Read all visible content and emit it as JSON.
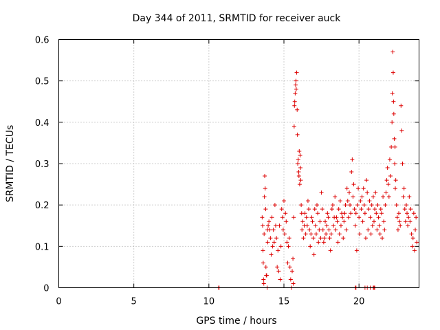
{
  "chart_data": {
    "type": "scatter",
    "title": "Day 344 of 2011, SRMTID for receiver auck",
    "xlabel": "GPS time / hours",
    "ylabel": "SRMTID / TECUs",
    "xlim": [
      0,
      24
    ],
    "ylim": [
      0,
      0.6
    ],
    "xticks": [
      0,
      5,
      10,
      15,
      20
    ],
    "yticks": [
      0,
      0.1,
      0.2,
      0.3,
      0.4,
      0.5,
      0.6
    ],
    "xtick_labels": [
      "0",
      "5",
      "10",
      "15",
      "20"
    ],
    "ytick_labels": [
      "0",
      "0.1",
      "0.2",
      "0.3",
      "0.4",
      "0.5",
      "0.6"
    ],
    "grid": true,
    "marker": "plus",
    "color": "#dd0000",
    "series": [
      {
        "name": "SRMTID",
        "x": [
          10.65,
          10.68,
          13.55,
          13.58,
          13.6,
          13.62,
          13.64,
          13.66,
          13.68,
          13.7,
          13.72,
          13.75,
          13.78,
          13.8,
          13.82,
          13.85,
          13.88,
          13.9,
          13.92,
          13.95,
          14.0,
          14.05,
          14.1,
          14.15,
          14.2,
          14.25,
          14.3,
          14.35,
          14.4,
          14.45,
          14.5,
          14.55,
          14.6,
          14.65,
          14.7,
          14.75,
          14.8,
          14.85,
          14.9,
          14.95,
          15.0,
          15.05,
          15.1,
          15.15,
          15.2,
          15.25,
          15.3,
          15.35,
          15.4,
          15.45,
          15.5,
          15.55,
          15.6,
          15.62,
          15.65,
          15.68,
          15.7,
          15.72,
          15.75,
          15.78,
          15.8,
          15.82,
          15.85,
          15.88,
          15.9,
          15.92,
          15.95,
          15.98,
          16.0,
          16.02,
          16.05,
          16.08,
          16.1,
          16.12,
          16.15,
          16.18,
          16.2,
          16.25,
          16.3,
          16.35,
          16.4,
          16.45,
          16.5,
          16.55,
          16.6,
          16.65,
          16.7,
          16.75,
          16.8,
          16.85,
          16.9,
          16.95,
          17.0,
          17.05,
          17.1,
          17.15,
          17.2,
          17.25,
          17.3,
          17.35,
          17.4,
          17.45,
          17.5,
          17.55,
          17.6,
          17.65,
          17.7,
          17.75,
          17.8,
          17.85,
          17.9,
          17.95,
          18.0,
          18.05,
          18.1,
          18.15,
          18.2,
          18.25,
          18.3,
          18.35,
          18.4,
          18.45,
          18.5,
          18.55,
          18.6,
          18.65,
          18.7,
          18.75,
          18.8,
          18.85,
          18.9,
          18.95,
          19.0,
          19.05,
          19.1,
          19.15,
          19.2,
          19.25,
          19.3,
          19.35,
          19.4,
          19.45,
          19.5,
          19.55,
          19.6,
          19.65,
          19.7,
          19.75,
          19.8,
          19.85,
          19.9,
          19.95,
          20.0,
          20.05,
          20.1,
          20.15,
          20.2,
          20.25,
          20.3,
          20.35,
          20.4,
          20.45,
          20.5,
          20.55,
          20.6,
          20.65,
          20.7,
          20.75,
          20.8,
          20.85,
          20.9,
          20.95,
          21.0,
          21.05,
          21.1,
          21.15,
          21.2,
          21.25,
          21.3,
          21.35,
          21.4,
          21.45,
          21.5,
          21.55,
          21.6,
          21.65,
          21.7,
          21.75,
          21.8,
          21.85,
          21.9,
          21.95,
          22.0,
          22.05,
          22.1,
          22.15,
          22.2,
          22.22,
          22.25,
          22.28,
          22.3,
          22.32,
          22.35,
          22.38,
          22.4,
          22.42,
          22.45,
          22.5,
          22.55,
          22.6,
          22.65,
          22.7,
          22.75,
          22.8,
          22.85,
          22.9,
          22.95,
          23.0,
          23.05,
          23.1,
          23.15,
          23.2,
          23.25,
          23.3,
          23.35,
          23.4,
          23.45,
          23.5,
          23.55,
          23.6,
          23.65,
          23.7,
          23.75,
          23.8,
          23.85,
          19.75,
          19.8,
          20.4,
          20.55,
          20.75,
          20.95,
          21.0,
          21.05
        ],
        "y": [
          0.0,
          0.0,
          0.17,
          0.15,
          0.09,
          0.06,
          0.02,
          0.01,
          0.13,
          0.22,
          0.27,
          0.24,
          0.19,
          0.05,
          0.03,
          0.03,
          0.0,
          0.14,
          0.11,
          0.15,
          0.16,
          0.14,
          0.12,
          0.08,
          0.17,
          0.1,
          0.14,
          0.11,
          0.2,
          0.15,
          0.12,
          0.05,
          0.09,
          0.04,
          0.15,
          0.02,
          0.1,
          0.19,
          0.17,
          0.14,
          0.21,
          0.13,
          0.18,
          0.16,
          0.11,
          0.06,
          0.1,
          0.12,
          0.05,
          0.02,
          0.0,
          0.04,
          0.07,
          0.01,
          0.17,
          0.39,
          0.44,
          0.45,
          0.47,
          0.49,
          0.5,
          0.48,
          0.52,
          0.43,
          0.37,
          0.3,
          0.31,
          0.28,
          0.27,
          0.33,
          0.25,
          0.32,
          0.29,
          0.26,
          0.2,
          0.18,
          0.14,
          0.16,
          0.12,
          0.15,
          0.18,
          0.13,
          0.17,
          0.15,
          0.21,
          0.19,
          0.14,
          0.1,
          0.13,
          0.17,
          0.16,
          0.12,
          0.08,
          0.19,
          0.15,
          0.13,
          0.2,
          0.18,
          0.11,
          0.14,
          0.16,
          0.12,
          0.23,
          0.19,
          0.14,
          0.11,
          0.12,
          0.16,
          0.13,
          0.15,
          0.18,
          0.17,
          0.14,
          0.12,
          0.09,
          0.13,
          0.19,
          0.2,
          0.15,
          0.17,
          0.22,
          0.14,
          0.17,
          0.16,
          0.11,
          0.19,
          0.13,
          0.21,
          0.15,
          0.18,
          0.17,
          0.12,
          0.16,
          0.18,
          0.2,
          0.14,
          0.24,
          0.21,
          0.17,
          0.23,
          0.2,
          0.18,
          0.28,
          0.31,
          0.22,
          0.25,
          0.19,
          0.15,
          0.18,
          0.09,
          0.2,
          0.24,
          0.17,
          0.13,
          0.21,
          0.19,
          0.22,
          0.16,
          0.24,
          0.2,
          0.18,
          0.12,
          0.26,
          0.23,
          0.14,
          0.19,
          0.21,
          0.17,
          0.13,
          0.2,
          0.15,
          0.22,
          0.16,
          0.19,
          0.23,
          0.18,
          0.14,
          0.2,
          0.17,
          0.15,
          0.13,
          0.19,
          0.18,
          0.12,
          0.22,
          0.16,
          0.14,
          0.2,
          0.23,
          0.26,
          0.29,
          0.25,
          0.22,
          0.31,
          0.27,
          0.34,
          0.4,
          0.47,
          0.57,
          0.52,
          0.45,
          0.42,
          0.36,
          0.3,
          0.34,
          0.24,
          0.26,
          0.2,
          0.17,
          0.14,
          0.18,
          0.16,
          0.15,
          0.44,
          0.38,
          0.3,
          0.22,
          0.24,
          0.19,
          0.16,
          0.2,
          0.18,
          0.15,
          0.17,
          0.22,
          0.16,
          0.19,
          0.13,
          0.1,
          0.12,
          0.18,
          0.09,
          0.14,
          0.17,
          0.11,
          0.0,
          0.0,
          0.0,
          0.0,
          0.0,
          0.0,
          0.0,
          0.0
        ]
      }
    ]
  }
}
